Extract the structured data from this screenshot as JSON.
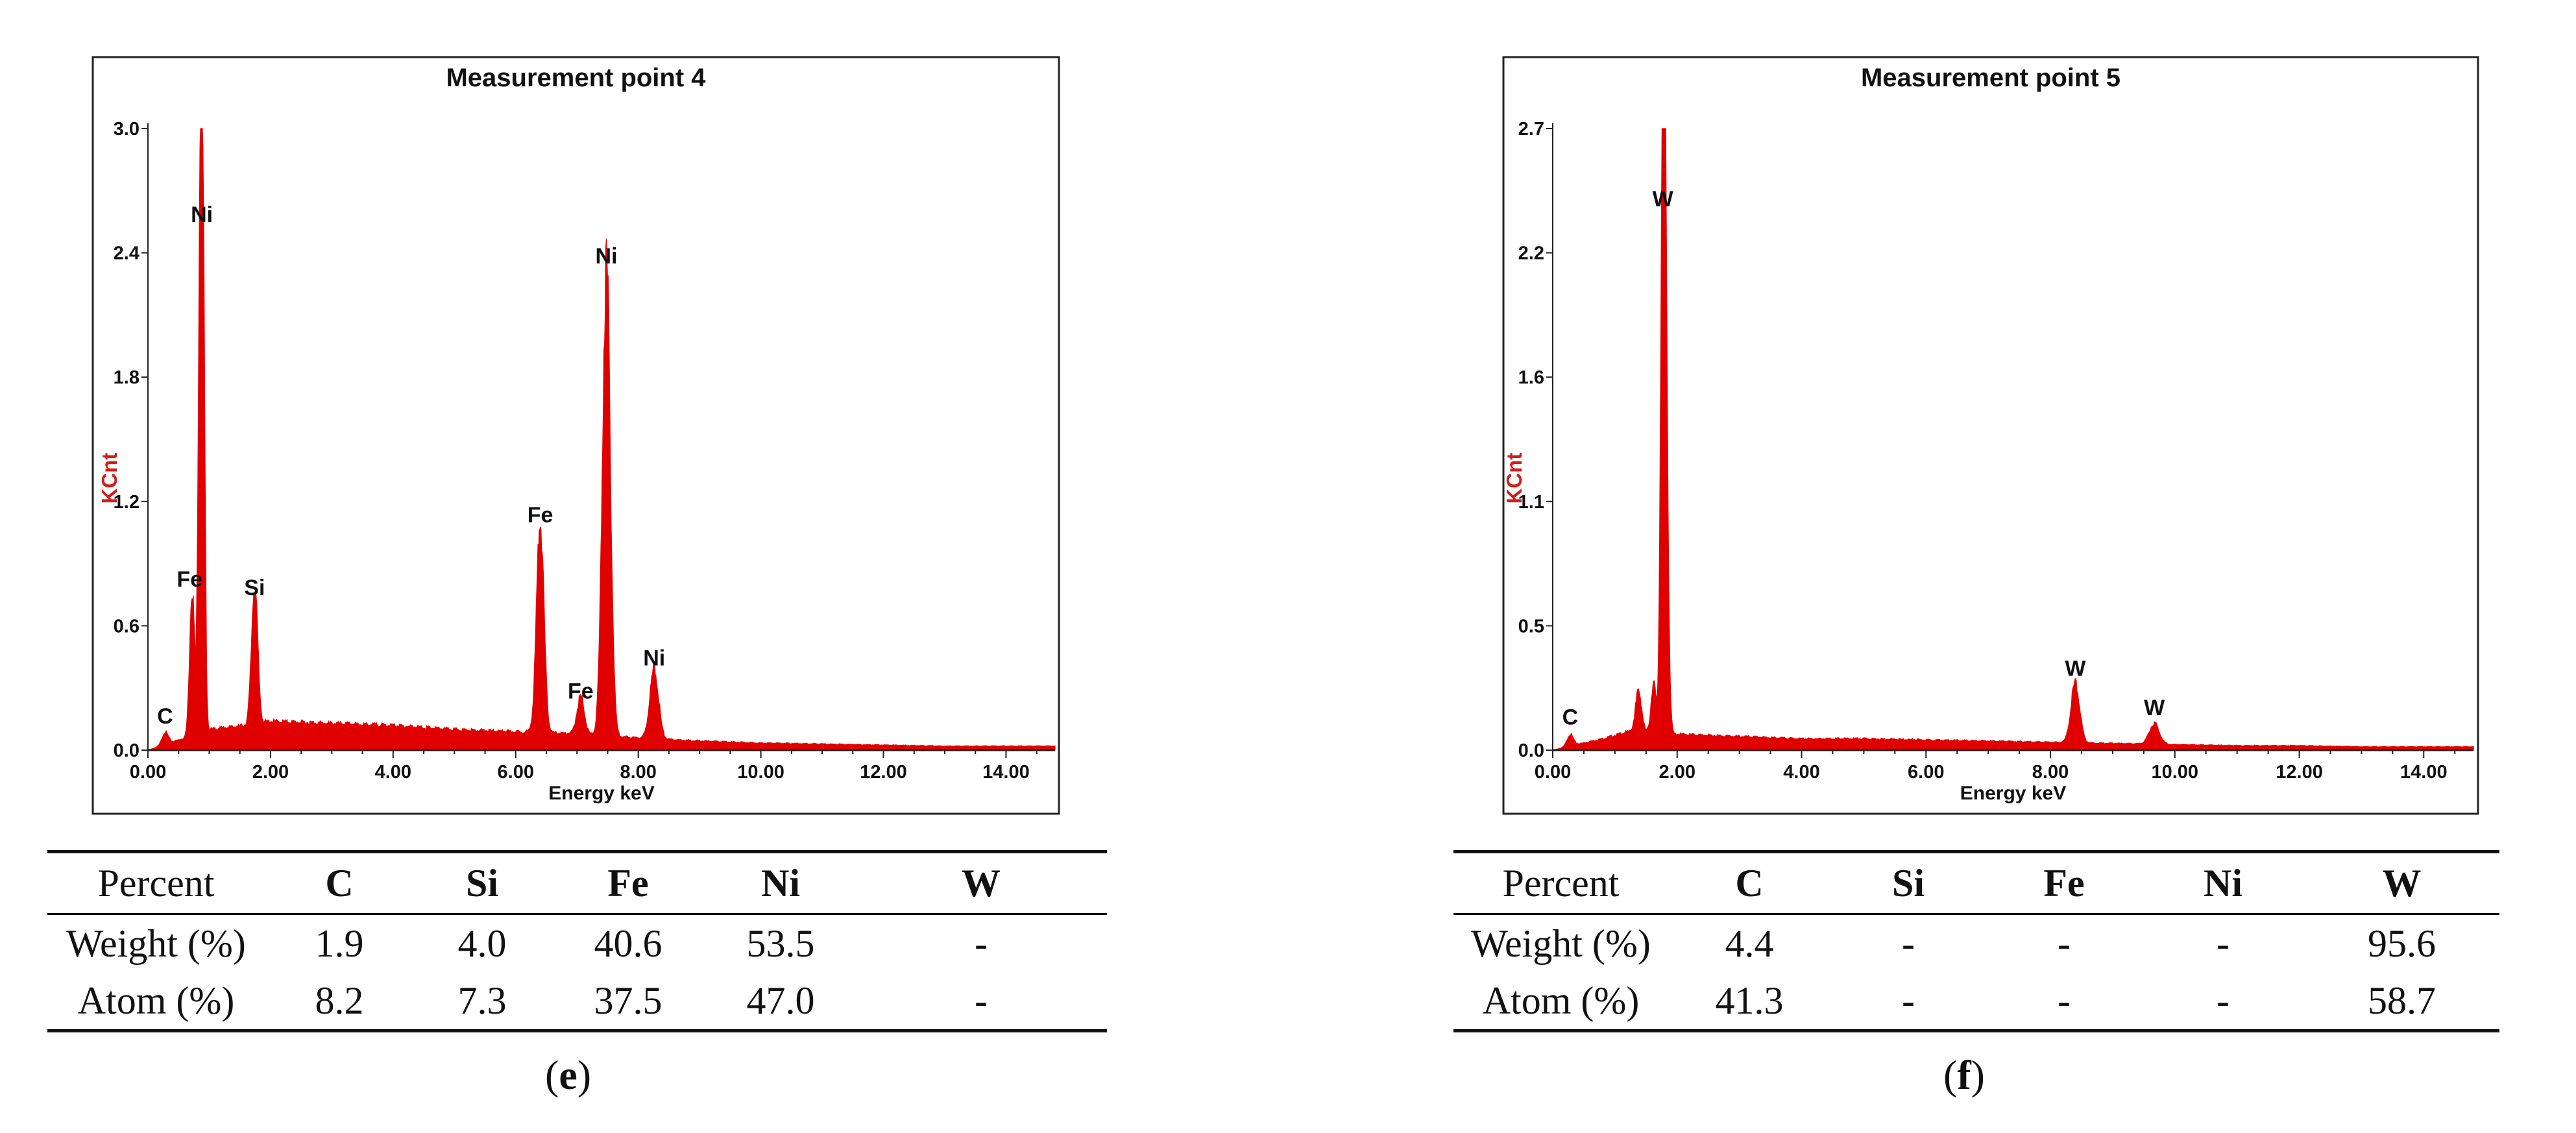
{
  "colors": {
    "spectrum": "#e10000",
    "axis_title": "#d41c1c",
    "text": "#111111"
  },
  "chart_data": [
    {
      "type": "line",
      "title": "Measurement point 4",
      "xlabel": "Energy keV",
      "ylabel": "KCnt",
      "xlim": [
        0,
        14.8
      ],
      "ylim": [
        0,
        3.0
      ],
      "x_ticks": [
        "0.00",
        "2.00",
        "4.00",
        "6.00",
        "8.00",
        "10.00",
        "12.00",
        "14.00"
      ],
      "y_ticks": [
        "0.0",
        "0.6",
        "1.2",
        "1.8",
        "2.4",
        "3.0"
      ],
      "background": {
        "x": [
          0.0,
          0.3,
          0.6,
          1.0,
          1.6,
          2.0,
          3.0,
          4.0,
          5.0,
          6.0,
          7.0,
          8.0,
          9.0,
          10.0,
          11.0,
          12.0,
          13.0,
          14.8
        ],
        "y": [
          0.0,
          0.03,
          0.06,
          0.1,
          0.12,
          0.14,
          0.13,
          0.12,
          0.1,
          0.09,
          0.08,
          0.06,
          0.045,
          0.035,
          0.03,
          0.025,
          0.02,
          0.02
        ]
      },
      "peaks": [
        {
          "x": 0.28,
          "y": 0.06,
          "w": 0.05
        },
        {
          "x": 0.72,
          "y": 0.72,
          "w": 0.04
        },
        {
          "x": 0.85,
          "y": 2.48,
          "w": 0.03
        },
        {
          "x": 0.9,
          "y": 2.1,
          "w": 0.03
        },
        {
          "x": 1.74,
          "y": 0.68,
          "w": 0.05
        },
        {
          "x": 6.4,
          "y": 1.03,
          "w": 0.06
        },
        {
          "x": 7.06,
          "y": 0.18,
          "w": 0.06
        },
        {
          "x": 7.48,
          "y": 2.28,
          "w": 0.065
        },
        {
          "x": 8.26,
          "y": 0.34,
          "w": 0.07
        }
      ],
      "annotations": [
        {
          "text": "C",
          "x": 0.28,
          "y": 0.06
        },
        {
          "text": "Fe",
          "x": 0.68,
          "y": 0.72
        },
        {
          "text": "Ni",
          "x": 0.88,
          "y": 2.48
        },
        {
          "text": "Si",
          "x": 1.74,
          "y": 0.68
        },
        {
          "text": "Fe",
          "x": 6.4,
          "y": 1.03
        },
        {
          "text": "Fe",
          "x": 7.06,
          "y": 0.18
        },
        {
          "text": "Ni",
          "x": 7.48,
          "y": 2.28
        },
        {
          "text": "Ni",
          "x": 8.26,
          "y": 0.34
        }
      ]
    },
    {
      "type": "line",
      "title": "Measurement point 5",
      "xlabel": "Energy keV",
      "ylabel": "KCnt",
      "xlim": [
        0,
        14.8
      ],
      "ylim": [
        0,
        2.7
      ],
      "x_ticks": [
        "0.00",
        "2.00",
        "4.00",
        "6.00",
        "8.00",
        "10.00",
        "12.00",
        "14.00"
      ],
      "y_ticks": [
        "0.0",
        "0.5",
        "1.1",
        "1.6",
        "2.2",
        "2.7"
      ],
      "background": {
        "x": [
          0.0,
          0.3,
          0.8,
          1.2,
          2.0,
          3.0,
          4.0,
          5.0,
          6.0,
          7.0,
          8.0,
          9.0,
          10.0,
          11.0,
          12.0,
          13.0,
          14.8
        ],
        "y": [
          0.0,
          0.02,
          0.05,
          0.08,
          0.07,
          0.06,
          0.05,
          0.05,
          0.045,
          0.04,
          0.035,
          0.03,
          0.025,
          0.02,
          0.02,
          0.015,
          0.015
        ]
      },
      "peaks": [
        {
          "x": 0.28,
          "y": 0.05,
          "w": 0.05
        },
        {
          "x": 1.38,
          "y": 0.18,
          "w": 0.05
        },
        {
          "x": 1.62,
          "y": 0.22,
          "w": 0.04
        },
        {
          "x": 1.77,
          "y": 2.3,
          "w": 0.035
        },
        {
          "x": 1.81,
          "y": 1.7,
          "w": 0.04
        },
        {
          "x": 8.4,
          "y": 0.26,
          "w": 0.07
        },
        {
          "x": 9.67,
          "y": 0.09,
          "w": 0.08
        }
      ],
      "annotations": [
        {
          "text": "C",
          "x": 0.28,
          "y": 0.05
        },
        {
          "text": "W",
          "x": 1.77,
          "y": 2.3
        },
        {
          "text": "W",
          "x": 8.4,
          "y": 0.26
        },
        {
          "text": "W",
          "x": 9.67,
          "y": 0.09
        }
      ]
    }
  ],
  "tables": [
    {
      "header": [
        "Percent",
        "C",
        "Si",
        "Fe",
        "Ni",
        "W"
      ],
      "rows": [
        [
          "Weight (%)",
          "1.9",
          "4.0",
          "40.6",
          "53.5",
          "-"
        ],
        [
          "Atom (%)",
          "8.2",
          "7.3",
          "37.5",
          "47.0",
          "-"
        ]
      ]
    },
    {
      "header": [
        "Percent",
        "C",
        "Si",
        "Fe",
        "Ni",
        "W"
      ],
      "rows": [
        [
          "Weight (%)",
          "4.4",
          "-",
          "-",
          "-",
          "95.6"
        ],
        [
          "Atom (%)",
          "41.3",
          "-",
          "-",
          "-",
          "58.7"
        ]
      ]
    }
  ],
  "captions": [
    {
      "open": "(",
      "letter": "e",
      "close": ")"
    },
    {
      "open": "(",
      "letter": "f",
      "close": ")"
    }
  ]
}
